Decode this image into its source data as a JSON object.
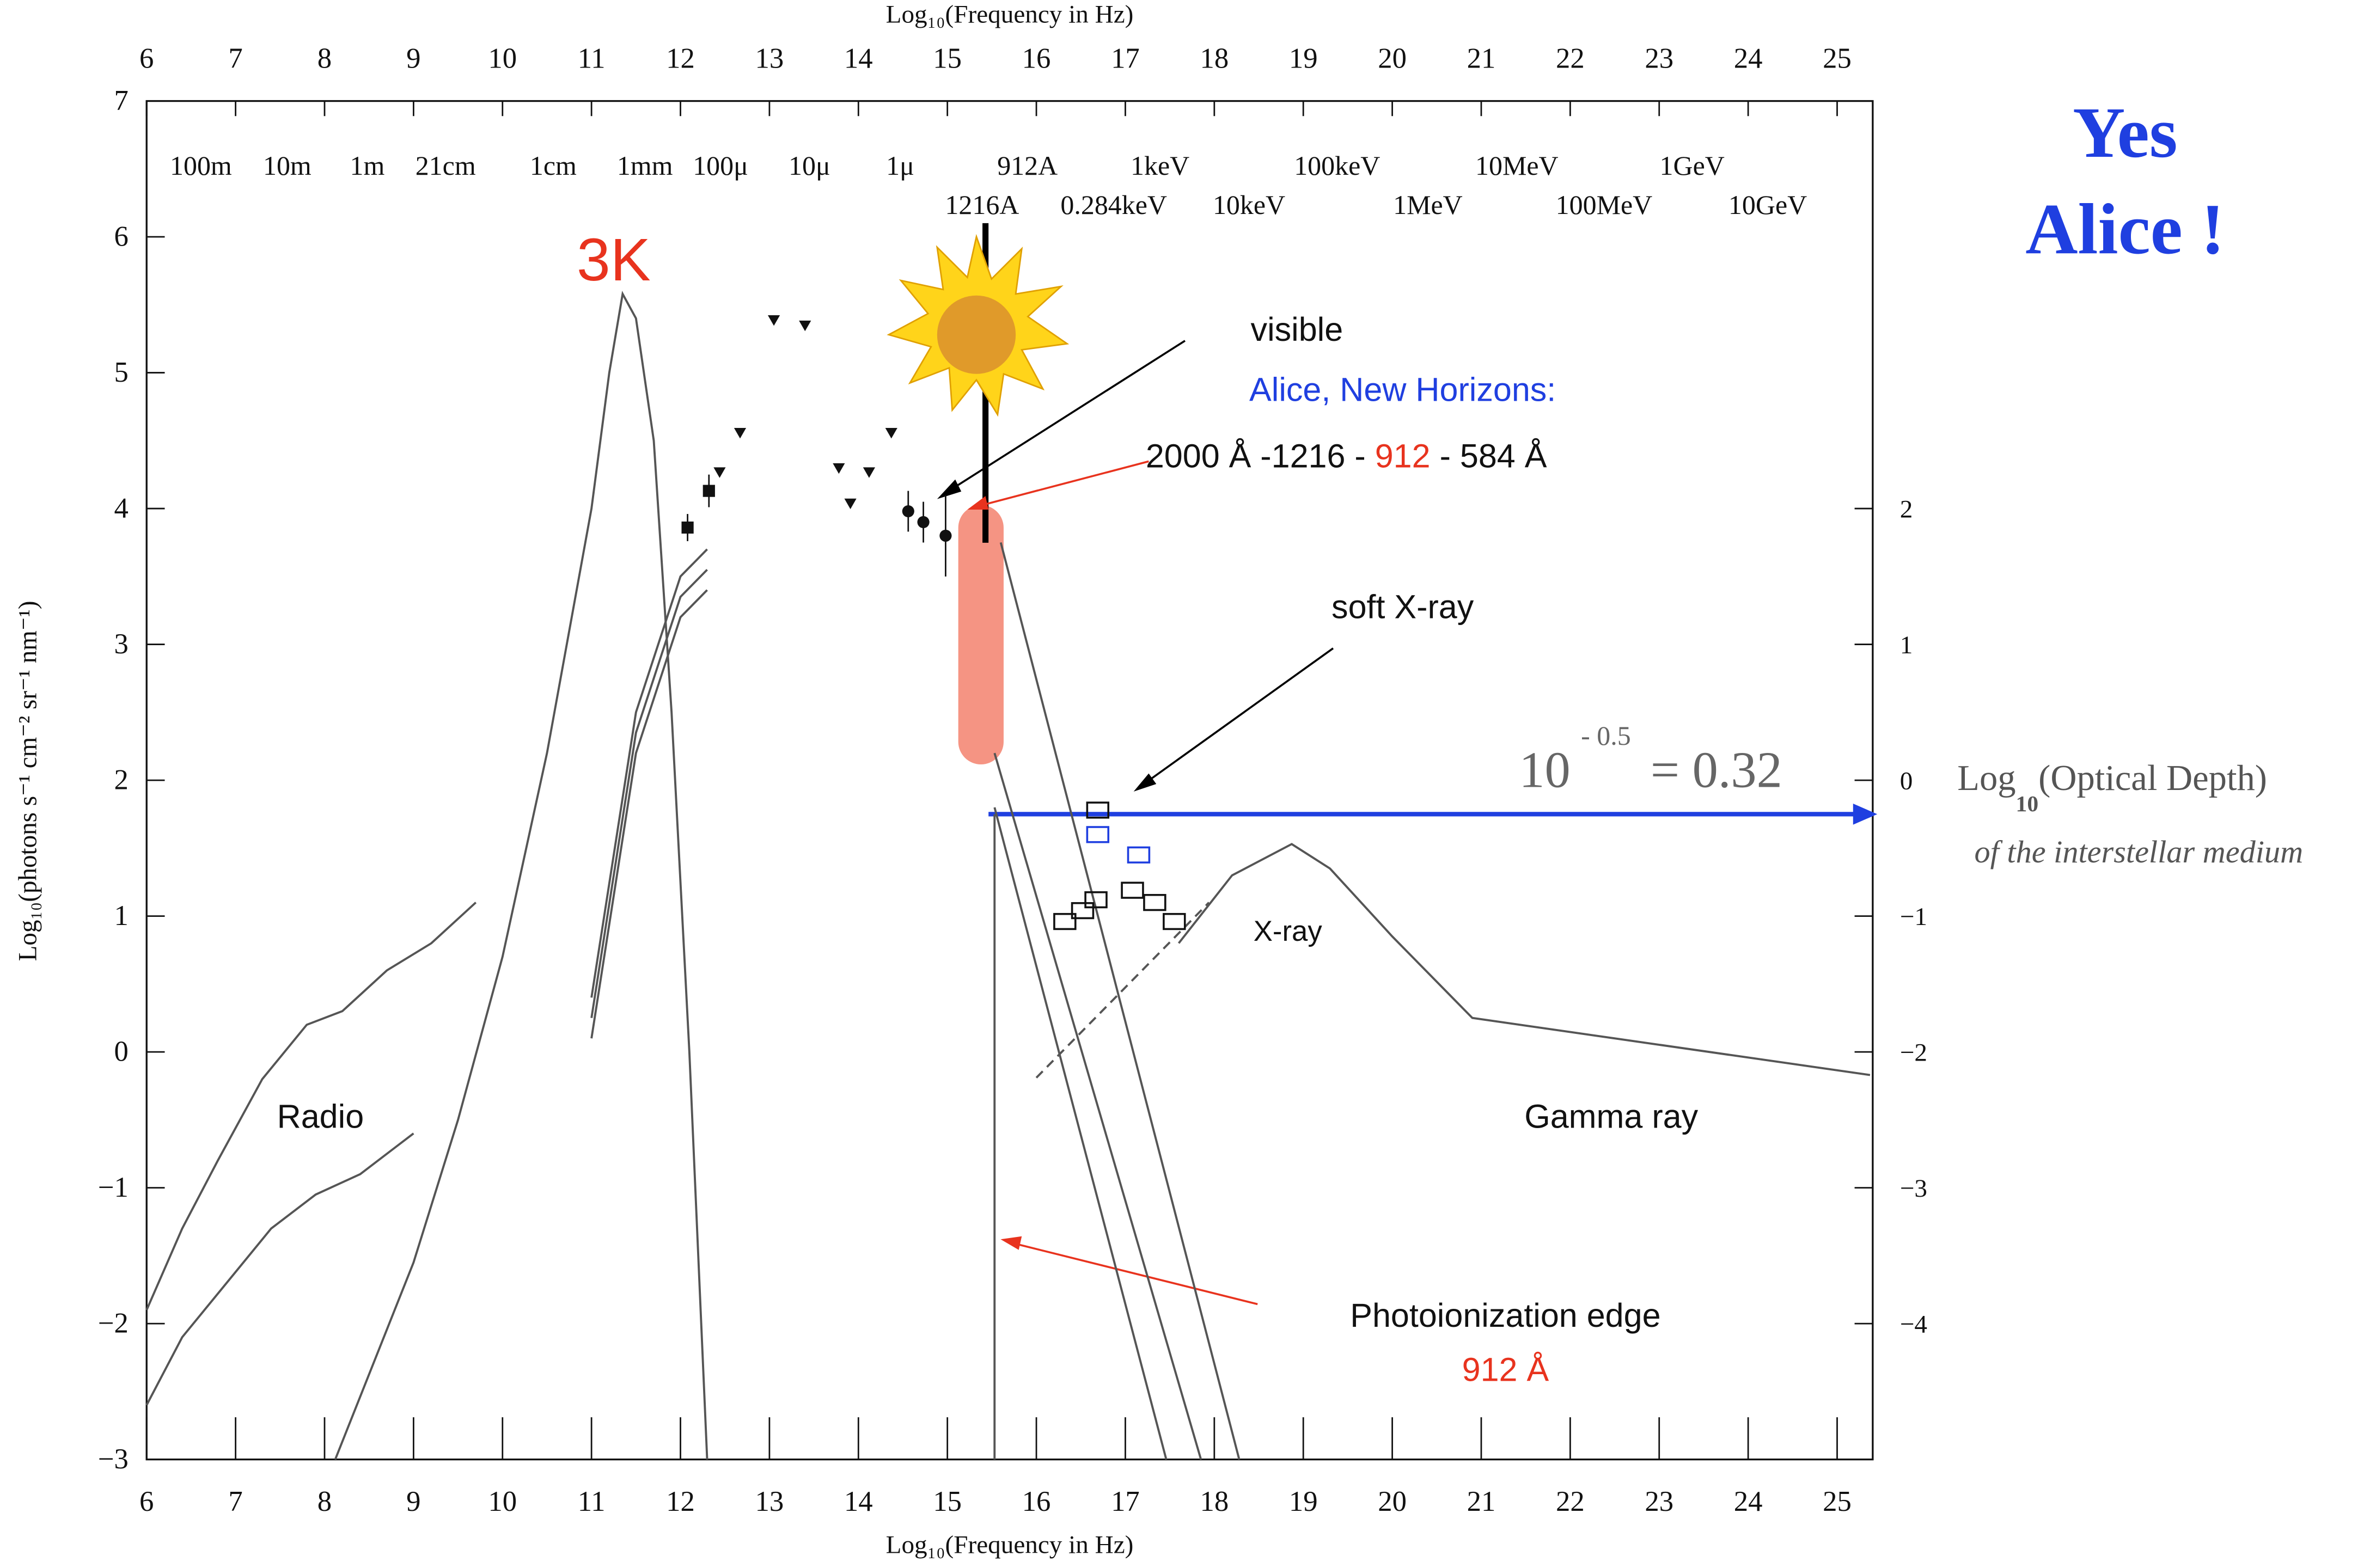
{
  "chart_data": {
    "type": "line",
    "x_label_top": "Log₁₀(Frequency in Hz)",
    "x_label": "Log₁₀(Frequency in Hz)",
    "y_label": "Log₁₀(photons s⁻¹ cm⁻² sr⁻¹ nm⁻¹)",
    "xlim": [
      6,
      25.4
    ],
    "ylim": [
      -3,
      7
    ],
    "y2lim": [
      -5,
      5
    ],
    "xticks": [
      6,
      7,
      8,
      9,
      10,
      11,
      12,
      13,
      14,
      15,
      16,
      17,
      18,
      19,
      20,
      21,
      22,
      23,
      24,
      25
    ],
    "yticks": [
      {
        "value": -3,
        "label": "−3"
      },
      {
        "value": -2,
        "label": "−2"
      },
      {
        "value": -1,
        "label": "−1"
      },
      0,
      1,
      2,
      3,
      4,
      5,
      6,
      7
    ],
    "y2ticks": [
      {
        "value": -4,
        "label": "−4"
      },
      {
        "value": -3,
        "label": "−3"
      },
      {
        "value": -2,
        "label": "−2"
      },
      {
        "value": -1,
        "label": "−1"
      },
      0,
      1,
      2
    ],
    "energy_labels": [
      {
        "text": "100m",
        "x": 6.61,
        "row": 1
      },
      {
        "text": "10m",
        "x": 7.58,
        "row": 1
      },
      {
        "text": "1m",
        "x": 8.48,
        "row": 1
      },
      {
        "text": "21cm",
        "x": 9.36,
        "row": 1
      },
      {
        "text": "1cm",
        "x": 10.57,
        "row": 1
      },
      {
        "text": "1mm",
        "x": 11.6,
        "row": 1
      },
      {
        "text": "100μ",
        "x": 12.45,
        "row": 1
      },
      {
        "text": "10μ",
        "x": 13.45,
        "row": 1
      },
      {
        "text": "1μ",
        "x": 14.47,
        "row": 1
      },
      {
        "text": "912A",
        "x": 15.9,
        "row": 1
      },
      {
        "text": "1keV",
        "x": 17.39,
        "row": 1
      },
      {
        "text": "100keV",
        "x": 19.38,
        "row": 1
      },
      {
        "text": "10MeV",
        "x": 21.4,
        "row": 1
      },
      {
        "text": "1GeV",
        "x": 23.37,
        "row": 1
      },
      {
        "text": "1216A",
        "x": 15.39,
        "row": 2
      },
      {
        "text": "0.284keV",
        "x": 16.87,
        "row": 2
      },
      {
        "text": "10keV",
        "x": 18.39,
        "row": 2
      },
      {
        "text": "1MeV",
        "x": 20.4,
        "row": 2
      },
      {
        "text": "100MeV",
        "x": 22.38,
        "row": 2
      },
      {
        "text": "10GeV",
        "x": 24.22,
        "row": 2
      }
    ],
    "series": [
      {
        "marker": "line",
        "color": "#555555",
        "x": [
          8.12,
          9,
          9.5,
          10,
          10.5,
          11,
          11.2,
          11.35,
          11.5,
          11.7,
          11.9,
          12.1,
          12.3
        ],
        "values": [
          -3,
          -1.55,
          -0.5,
          0.7,
          2.2,
          4.0,
          5.0,
          5.58,
          5.4,
          4.5,
          2.5,
          0,
          -3
        ]
      },
      {
        "marker": "line",
        "color": "#555555",
        "x": [
          6,
          6.4,
          6.8,
          7.3,
          7.8,
          8.2,
          8.7,
          9.2,
          9.7
        ],
        "values": [
          -1.9,
          -1.3,
          -0.8,
          -0.2,
          0.2,
          0.3,
          0.6,
          0.8,
          1.1
        ]
      },
      {
        "marker": "line",
        "color": "#555555",
        "x": [
          6,
          6.4,
          6.9,
          7.4,
          7.9,
          8.4,
          8.8,
          9
        ],
        "values": [
          -2.6,
          -2.1,
          -1.7,
          -1.3,
          -1.05,
          -0.9,
          -0.7,
          -0.6
        ]
      },
      {
        "marker": "line",
        "color": "#555555",
        "x": [
          11,
          11.5,
          12,
          12.3
        ],
        "values": [
          0.1,
          2.2,
          3.2,
          3.4
        ]
      },
      {
        "marker": "line",
        "color": "#555555",
        "x": [
          11,
          11.5,
          12,
          12.3
        ],
        "values": [
          0.25,
          2.35,
          3.35,
          3.55
        ]
      },
      {
        "marker": "line",
        "color": "#555555",
        "x": [
          11,
          11.5,
          12,
          12.3
        ],
        "values": [
          0.4,
          2.5,
          3.5,
          3.7
        ]
      },
      {
        "marker": "line",
        "color": "#555555",
        "x": [
          17.6,
          18.2,
          18.87,
          19.3,
          20,
          20.9,
          25.37
        ],
        "values": [
          0.8,
          1.3,
          1.53,
          1.35,
          0.85,
          0.25,
          -0.17
        ]
      },
      {
        "marker": "line",
        "color": "#555555",
        "dash": true,
        "x": [
          16.0,
          17.94
        ],
        "values": [
          -0.19,
          1.1
        ]
      },
      {
        "marker": "line",
        "color": "#555555",
        "x": [
          15.6,
          18.28
        ],
        "values": [
          3.75,
          -3
        ]
      },
      {
        "marker": "line",
        "color": "#555555",
        "x": [
          15.53,
          17.85
        ],
        "values": [
          2.2,
          -3
        ]
      },
      {
        "marker": "line",
        "color": "#555555",
        "x": [
          15.53,
          17.46
        ],
        "values": [
          1.8,
          -3
        ]
      },
      {
        "marker": "line",
        "color": "#555555",
        "x": [
          15.53,
          15.53
        ],
        "values": [
          1.75,
          -3
        ]
      },
      {
        "marker": "triangle",
        "color": "#111111",
        "x": [
          13.05,
          13.4,
          12.67,
          12.44,
          13.78,
          14.12,
          14.37,
          13.91
        ],
        "values": [
          5.39,
          5.35,
          4.56,
          4.27,
          4.3,
          4.27,
          4.56,
          4.04
        ]
      },
      {
        "marker": "square",
        "color": "#111111",
        "x": [
          12.08,
          12.32
        ],
        "values": [
          3.86,
          4.13
        ],
        "errors": [
          0.1,
          0.12
        ]
      },
      {
        "marker": "circle",
        "color": "#111111",
        "x": [
          14.56,
          14.73,
          14.98
        ],
        "values": [
          3.98,
          3.9,
          3.8
        ],
        "errors": [
          0.15,
          0.15,
          0.3
        ]
      },
      {
        "marker": "box",
        "color": "#111111",
        "x": [
          16.32,
          16.52,
          16.67,
          16.69,
          17.08,
          17.33,
          17.55
        ],
        "values": [
          0.96,
          1.04,
          1.12,
          1.78,
          1.19,
          1.1,
          0.96
        ]
      },
      {
        "marker": "box",
        "color": "#1f3fe0",
        "x": [
          16.69,
          17.15
        ],
        "values": [
          1.6,
          1.45
        ]
      }
    ],
    "annotations": {
      "cmb": "3K",
      "visible": "visible",
      "alice": "Alice, New Horizons:",
      "range_a": "2000 Å -1216 -",
      "range_b": "912",
      "range_c": "- 584 Å",
      "soft_xray": "soft X-ray",
      "xray": "X-ray",
      "radio": "Radio",
      "gamma": "Gamma ray",
      "edge": "Photoionization edge",
      "edge_wl": "912 Å",
      "yes": "Yes",
      "yes_alice": "Alice !",
      "tau_base": "10",
      "tau_exp": "- 0.5",
      "tau_val": "= 0.32",
      "y2_title_a": "Log",
      "y2_title_sub": "10",
      "y2_title_b": "(Optical Depth)",
      "y2_sub": "of the interstellar medium"
    }
  }
}
